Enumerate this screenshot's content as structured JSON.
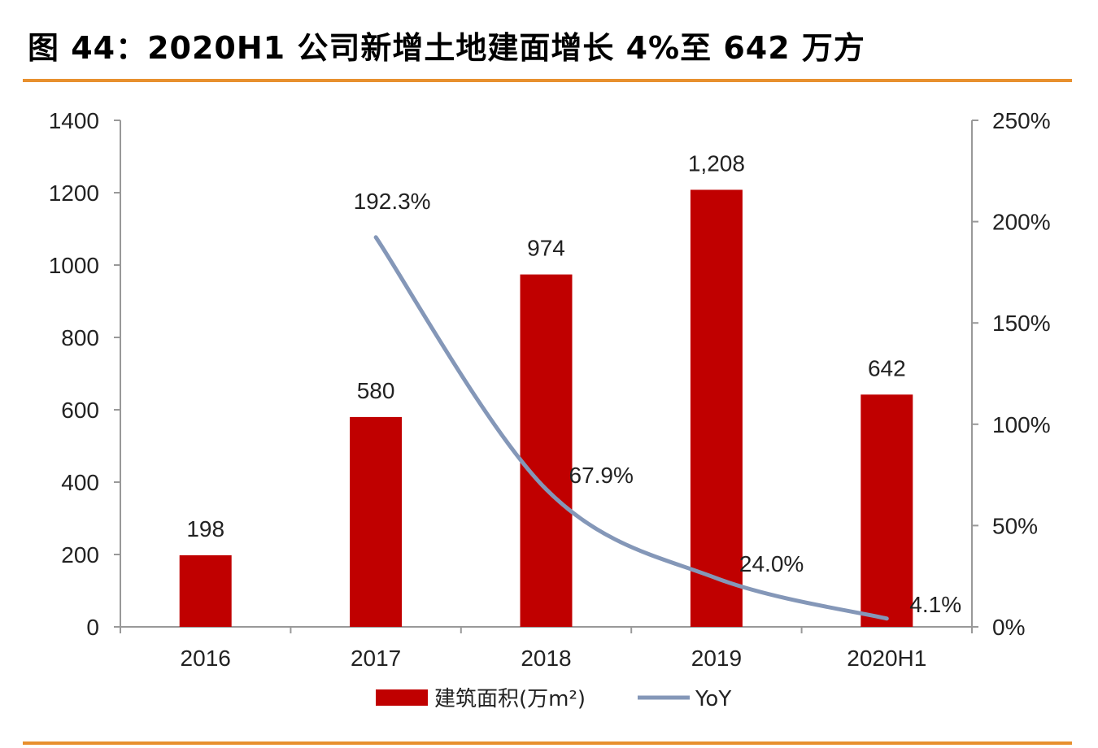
{
  "title": "图 44：2020H1 公司新增土地建面增长 4%至 642 万方",
  "chart_data": {
    "type": "bar",
    "categories": [
      "2016",
      "2017",
      "2018",
      "2019",
      "2020H1"
    ],
    "series": [
      {
        "name": "建筑面积(万m²)",
        "type": "bar",
        "axis": "left",
        "values": [
          198,
          580,
          974,
          1208,
          642
        ],
        "labels": [
          "198",
          "580",
          "974",
          "1,208",
          "642"
        ],
        "color": "#c00000"
      },
      {
        "name": "YoY",
        "type": "line",
        "axis": "right",
        "values": [
          null,
          192.3,
          67.9,
          24.0,
          4.1
        ],
        "labels": [
          "",
          "192.3%",
          "67.9%",
          "24.0%",
          "4.1%"
        ],
        "color": "#8497b8"
      }
    ],
    "y_left": {
      "min": 0,
      "max": 1400,
      "ticks": [
        "0",
        "200",
        "400",
        "600",
        "800",
        "1000",
        "1200",
        "1400"
      ]
    },
    "y_right": {
      "min": 0,
      "max": 250,
      "ticks": [
        "0%",
        "50%",
        "100%",
        "150%",
        "200%",
        "250%"
      ]
    },
    "legend": [
      "建筑面积(万m²)",
      "YoY"
    ],
    "legend_position": "bottom",
    "grid": false
  },
  "colors": {
    "rule": "#e8902e",
    "bar": "#c00000",
    "line": "#8497b8",
    "axis": "#999999"
  }
}
